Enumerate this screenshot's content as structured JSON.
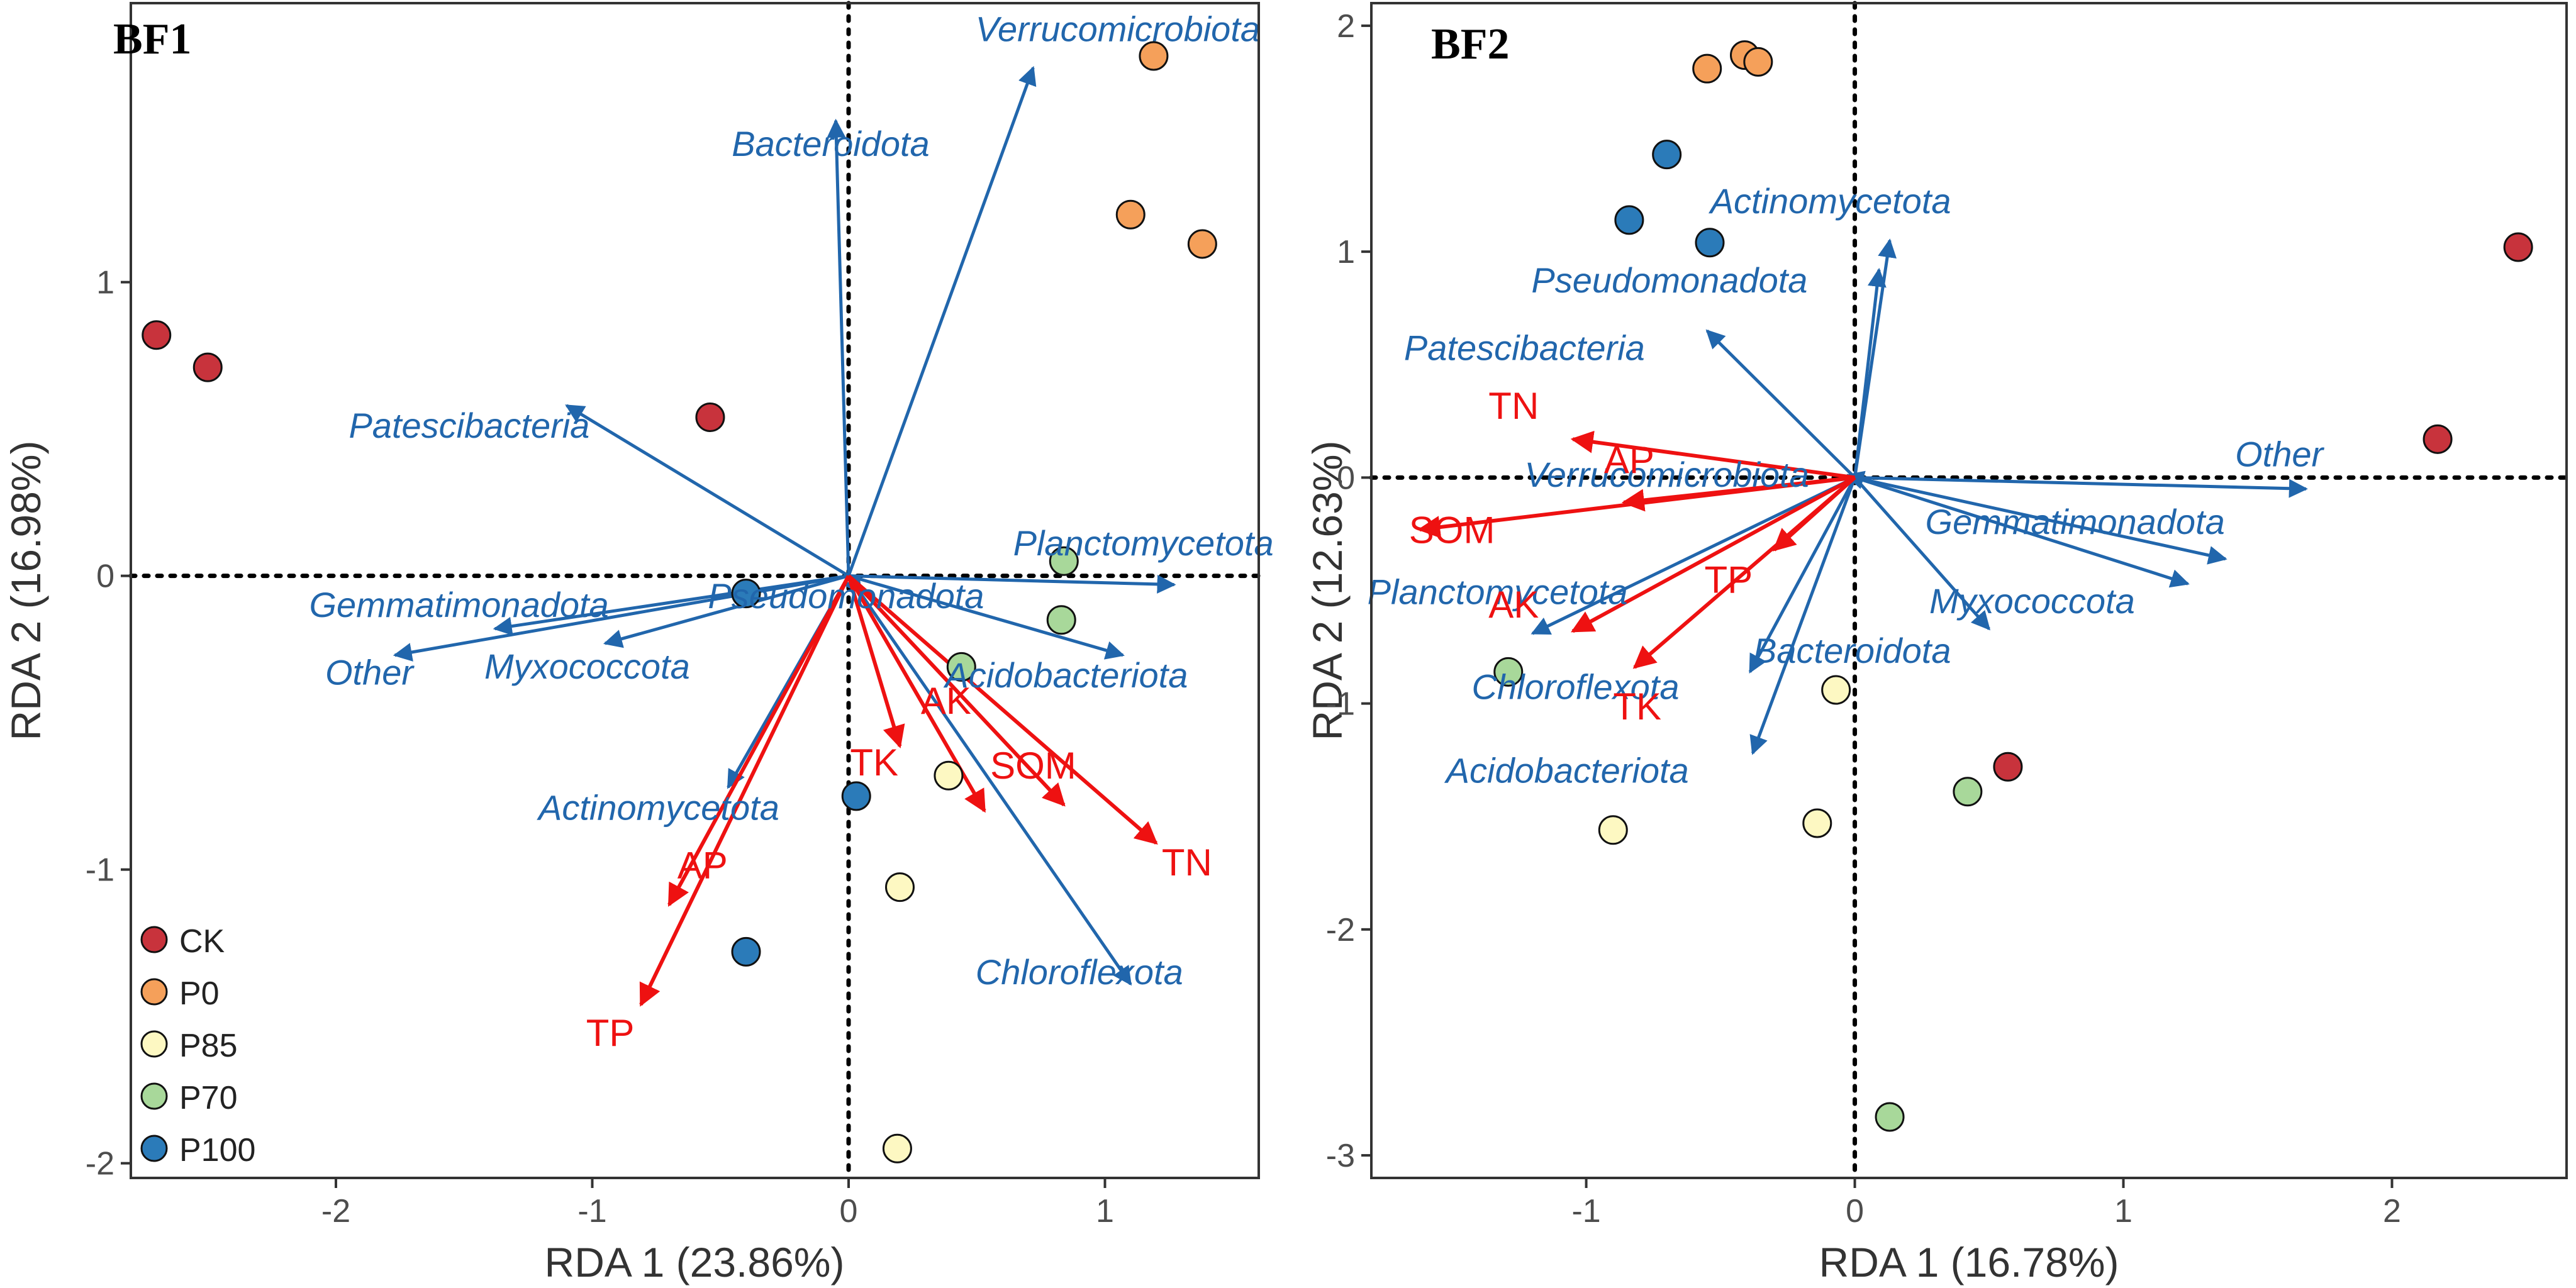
{
  "colors": {
    "taxa": "#2166ac",
    "env": "#ee1111",
    "CK": "#c8333c",
    "P0": "#f5a05a",
    "P85": "#fdf8c2",
    "P70": "#a8d89a",
    "P100": "#2b7bb9"
  },
  "legend": {
    "items": [
      {
        "label": "CK",
        "color": "#c8333c"
      },
      {
        "label": "P0",
        "color": "#f5a05a"
      },
      {
        "label": "P85",
        "color": "#fdf8c2"
      },
      {
        "label": "P70",
        "color": "#a8d89a"
      },
      {
        "label": "P100",
        "color": "#2b7bb9"
      }
    ]
  },
  "chart_data": [
    {
      "type": "scatter",
      "title": "BF1",
      "xlabel": "RDA 1 (23.86%)",
      "ylabel": "RDA 2 (16.98%)",
      "xlim": [
        -2.8,
        1.6
      ],
      "ylim": [
        -2.05,
        1.95
      ],
      "xticks": [
        -2,
        -1,
        0,
        1
      ],
      "yticks": [
        -2,
        -1,
        0,
        1
      ],
      "grid": false,
      "legend_position": "bottom-left",
      "points": [
        {
          "group": "CK",
          "x": -2.7,
          "y": 0.82
        },
        {
          "group": "CK",
          "x": -2.5,
          "y": 0.71
        },
        {
          "group": "CK",
          "x": -0.54,
          "y": 0.54
        },
        {
          "group": "P0",
          "x": 1.19,
          "y": 1.77
        },
        {
          "group": "P0",
          "x": 1.1,
          "y": 1.23
        },
        {
          "group": "P0",
          "x": 1.38,
          "y": 1.13
        },
        {
          "group": "P85",
          "x": 0.39,
          "y": -0.68
        },
        {
          "group": "P85",
          "x": 0.2,
          "y": -1.06
        },
        {
          "group": "P85",
          "x": 0.19,
          "y": -1.95
        },
        {
          "group": "P70",
          "x": 0.84,
          "y": 0.05
        },
        {
          "group": "P70",
          "x": 0.83,
          "y": -0.15
        },
        {
          "group": "P70",
          "x": 0.44,
          "y": -0.31
        },
        {
          "group": "P100",
          "x": -0.4,
          "y": -0.06
        },
        {
          "group": "P100",
          "x": 0.03,
          "y": -0.75
        },
        {
          "group": "P100",
          "x": -0.4,
          "y": -1.28
        }
      ],
      "taxa_arrows": [
        {
          "name": "Verrucomicrobiota",
          "x": 0.72,
          "y": 1.73,
          "lx": 1.05,
          "ly": 1.82
        },
        {
          "name": "Bacteroidota",
          "x": -0.05,
          "y": 1.55,
          "lx": -0.07,
          "ly": 1.43
        },
        {
          "name": "Patescibacteria",
          "x": -1.1,
          "y": 0.58,
          "lx": -1.48,
          "ly": 0.47
        },
        {
          "name": "Planctomycetota",
          "x": 1.27,
          "y": -0.03,
          "lx": 1.15,
          "ly": 0.07
        },
        {
          "name": "Pseudomonadota",
          "x": 0.05,
          "y": -0.06,
          "lx": -0.01,
          "ly": -0.11
        },
        {
          "name": "Gemmatimonadota",
          "x": -1.38,
          "y": -0.18,
          "lx": -1.52,
          "ly": -0.14
        },
        {
          "name": "Other",
          "x": -1.77,
          "y": -0.27,
          "lx": -1.87,
          "ly": -0.37
        },
        {
          "name": "Myxococcota",
          "x": -0.95,
          "y": -0.23,
          "lx": -1.02,
          "ly": -0.35
        },
        {
          "name": "Acidobacteriota",
          "x": 1.07,
          "y": -0.27,
          "lx": 0.85,
          "ly": -0.38
        },
        {
          "name": "Actinomycetota",
          "x": -0.47,
          "y": -0.72,
          "lx": -0.74,
          "ly": -0.83
        },
        {
          "name": "Chloroflexota",
          "x": 1.1,
          "y": -1.39,
          "lx": 0.9,
          "ly": -1.39
        }
      ],
      "env_arrows": [
        {
          "name": "AK",
          "x": 0.2,
          "y": -0.58,
          "lx": 0.38,
          "ly": -0.47
        },
        {
          "name": "TK",
          "x": 0.53,
          "y": -0.8,
          "lx": 0.1,
          "ly": -0.68
        },
        {
          "name": "SOM",
          "x": 0.84,
          "y": -0.78,
          "lx": 0.72,
          "ly": -0.69
        },
        {
          "name": "TN",
          "x": 1.2,
          "y": -0.91,
          "lx": 1.32,
          "ly": -1.02
        },
        {
          "name": "AP",
          "x": -0.7,
          "y": -1.12,
          "lx": -0.57,
          "ly": -1.03
        },
        {
          "name": "TP",
          "x": -0.81,
          "y": -1.46,
          "lx": -0.93,
          "ly": -1.6
        }
      ]
    },
    {
      "type": "scatter",
      "title": "BF2",
      "xlabel": "RDA 1 (16.78%)",
      "ylabel": "RDA 2 (12.63%)",
      "xlim": [
        -1.8,
        2.65
      ],
      "ylim": [
        -3.1,
        2.1
      ],
      "xticks": [
        -1,
        0,
        1,
        2
      ],
      "yticks": [
        -3,
        -2,
        -1,
        0,
        1,
        2
      ],
      "grid": false,
      "points": [
        {
          "group": "CK",
          "x": 2.47,
          "y": 1.02
        },
        {
          "group": "CK",
          "x": 2.17,
          "y": 0.17
        },
        {
          "group": "CK",
          "x": 0.57,
          "y": -1.28
        },
        {
          "group": "P0",
          "x": -0.55,
          "y": 1.81
        },
        {
          "group": "P0",
          "x": -0.41,
          "y": 1.87
        },
        {
          "group": "P0",
          "x": -0.36,
          "y": 1.84
        },
        {
          "group": "P85",
          "x": -0.07,
          "y": -0.94
        },
        {
          "group": "P85",
          "x": -0.9,
          "y": -1.56
        },
        {
          "group": "P85",
          "x": -0.14,
          "y": -1.53
        },
        {
          "group": "P70",
          "x": -1.29,
          "y": -0.86
        },
        {
          "group": "P70",
          "x": 0.42,
          "y": -1.39
        },
        {
          "group": "P70",
          "x": 0.13,
          "y": -2.83
        },
        {
          "group": "P100",
          "x": -0.7,
          "y": 1.43
        },
        {
          "group": "P100",
          "x": -0.84,
          "y": 1.14
        },
        {
          "group": "P100",
          "x": -0.54,
          "y": 1.04
        }
      ],
      "taxa_arrows": [
        {
          "name": "Actinomycetota",
          "x": 0.13,
          "y": 1.05,
          "lx": -0.09,
          "ly": 1.17
        },
        {
          "name": "Pseudomonadota",
          "x": 0.09,
          "y": 0.92,
          "lx": -0.69,
          "ly": 0.82
        },
        {
          "name": "Patescibacteria",
          "x": -0.55,
          "y": 0.65,
          "lx": -1.23,
          "ly": 0.52
        },
        {
          "name": "Verrucomicrobiota",
          "x": -0.03,
          "y": 0.01,
          "lx": -0.7,
          "ly": -0.04
        },
        {
          "name": "Other",
          "x": 1.68,
          "y": -0.05,
          "lx": 1.58,
          "ly": 0.05
        },
        {
          "name": "Gemmatimonadota",
          "x": 1.38,
          "y": -0.36,
          "lx": 0.82,
          "ly": -0.25
        },
        {
          "name": "Myxococcota",
          "x": 1.24,
          "y": -0.47,
          "lx": 0.66,
          "ly": -0.6
        },
        {
          "name": "Bacteroidota",
          "x": 0.5,
          "y": -0.67,
          "lx": -0.01,
          "ly": -0.82
        },
        {
          "name": "Planctomycetota",
          "x": -1.2,
          "y": -0.69,
          "lx": -1.33,
          "ly": -0.56
        },
        {
          "name": "Chloroflexota",
          "x": -0.39,
          "y": -0.86,
          "lx": -1.04,
          "ly": -0.98
        },
        {
          "name": "Acidobacteriota",
          "x": -0.38,
          "y": -1.22,
          "lx": -1.07,
          "ly": -1.35
        }
      ],
      "env_arrows": [
        {
          "name": "TN",
          "x": -1.05,
          "y": 0.17,
          "lx": -1.27,
          "ly": 0.26
        },
        {
          "name": "AP",
          "x": -0.86,
          "y": -0.11,
          "lx": -0.84,
          "ly": 0.02
        },
        {
          "name": "SOM",
          "x": -1.62,
          "y": -0.23,
          "lx": -1.5,
          "ly": -0.29
        },
        {
          "name": "TP",
          "x": -0.3,
          "y": -0.32,
          "lx": -0.47,
          "ly": -0.51
        },
        {
          "name": "AK",
          "x": -1.05,
          "y": -0.68,
          "lx": -1.27,
          "ly": -0.62
        },
        {
          "name": "TK",
          "x": -0.82,
          "y": -0.84,
          "lx": -0.81,
          "ly": -1.07
        }
      ]
    }
  ]
}
